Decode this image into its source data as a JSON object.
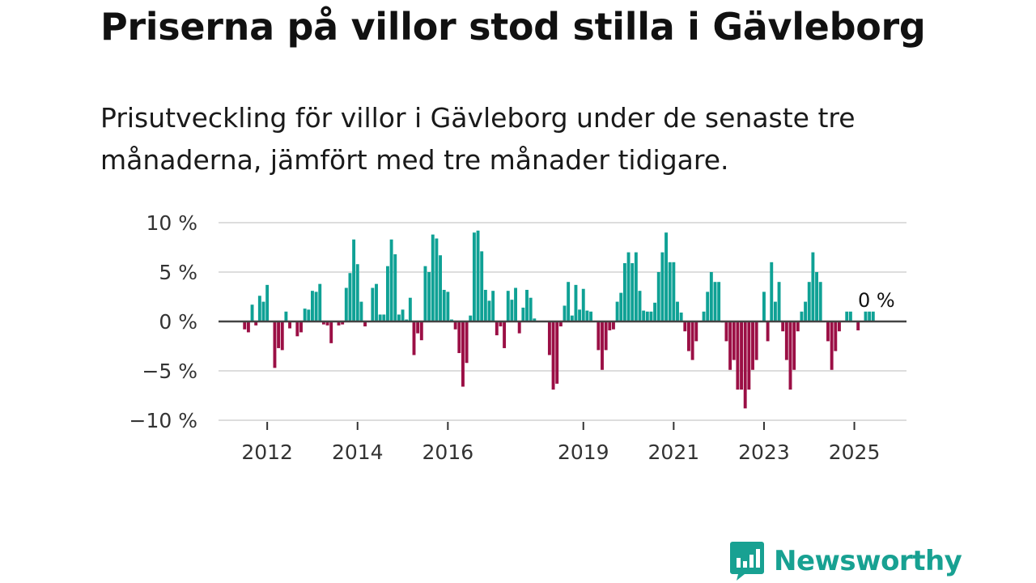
{
  "title": "Priserna på villor stod stilla i Gävleborg",
  "subtitle": "Prisutveckling för villor i Gävleborg under de senaste tre månaderna, jämfört med tre månader tidigare.",
  "brand": {
    "name": "Newsworthy",
    "color": "#18a192",
    "icon": "bar-chart-bubble-icon"
  },
  "colors": {
    "positive": "#0fa195",
    "negative": "#9b0f45",
    "zero_line": "#444444",
    "grid": "#dddddd"
  },
  "chart_data": {
    "type": "bar",
    "title": "Priserna på villor stod stilla i Gävleborg",
    "ylabel": "",
    "ylim": [
      -10,
      10
    ],
    "y_ticks": [
      10,
      5,
      0,
      -5,
      -10
    ],
    "y_tick_labels": [
      "10 %",
      "5 %",
      "0 %",
      "−5 %",
      "−10 %"
    ],
    "x_ticks": [
      {
        "label": "2012",
        "month_index": 11
      },
      {
        "label": "2014",
        "month_index": 35
      },
      {
        "label": "2016",
        "month_index": 59
      },
      {
        "label": "2019",
        "month_index": 95
      },
      {
        "label": "2021",
        "month_index": 119
      },
      {
        "label": "2023",
        "month_index": 143
      },
      {
        "label": "2025",
        "month_index": 167
      }
    ],
    "start": "2011-12",
    "annotation": "0 %",
    "values": [
      0,
      0,
      0,
      0,
      0,
      -0.8,
      -1.1,
      1.7,
      -0.4,
      2.6,
      2.0,
      3.7,
      0,
      -4.7,
      -2.7,
      -2.9,
      1.0,
      -0.7,
      0,
      -1.5,
      -1.1,
      1.3,
      1.2,
      3.1,
      3.0,
      3.8,
      -0.3,
      -0.4,
      -2.2,
      0,
      -0.4,
      -0.3,
      3.4,
      4.9,
      8.3,
      5.8,
      2.0,
      -0.5,
      0,
      3.4,
      3.8,
      0.7,
      0.7,
      5.6,
      8.3,
      6.8,
      0.7,
      1.2,
      0.2,
      2.4,
      -3.4,
      -1.2,
      -1.9,
      5.6,
      5.0,
      8.8,
      8.4,
      6.7,
      3.2,
      3.0,
      0.2,
      -0.8,
      -3.2,
      -6.6,
      -4.2,
      0.6,
      9.0,
      9.2,
      7.1,
      3.2,
      2.1,
      3.1,
      -1.4,
      -0.5,
      -2.7,
      3.1,
      2.2,
      3.4,
      -1.2,
      1.4,
      3.2,
      2.4,
      0.3,
      0,
      0,
      0,
      -3.4,
      -6.9,
      -6.3,
      -0.5,
      1.6,
      4.0,
      0.6,
      3.7,
      1.2,
      3.3,
      1.1,
      1.0,
      0,
      -2.9,
      -4.9,
      -2.9,
      -0.9,
      -0.8,
      2.0,
      2.9,
      5.9,
      7.0,
      5.9,
      7.0,
      3.1,
      1.1,
      1.0,
      1.0,
      1.9,
      5.0,
      7.0,
      9.0,
      6.0,
      6.0,
      2.0,
      0.9,
      -1.0,
      -3.0,
      -3.9,
      -2.0,
      0,
      1.0,
      3.0,
      5.0,
      4.0,
      4.0,
      -0.1,
      -2.0,
      -4.9,
      -3.9,
      -6.9,
      -6.9,
      -8.8,
      -6.9,
      -4.9,
      -3.9,
      0,
      3.0,
      -2.0,
      6.0,
      2.0,
      4.0,
      -1.0,
      -3.9,
      -6.9,
      -4.9,
      -1.0,
      1.0,
      2.0,
      4.0,
      7.0,
      5.0,
      4.0,
      0,
      -2.0,
      -4.9,
      -3.0,
      -1.0,
      0,
      1.0,
      1.0,
      0,
      -0.9,
      0,
      1.0,
      1.0,
      1.0
    ]
  }
}
